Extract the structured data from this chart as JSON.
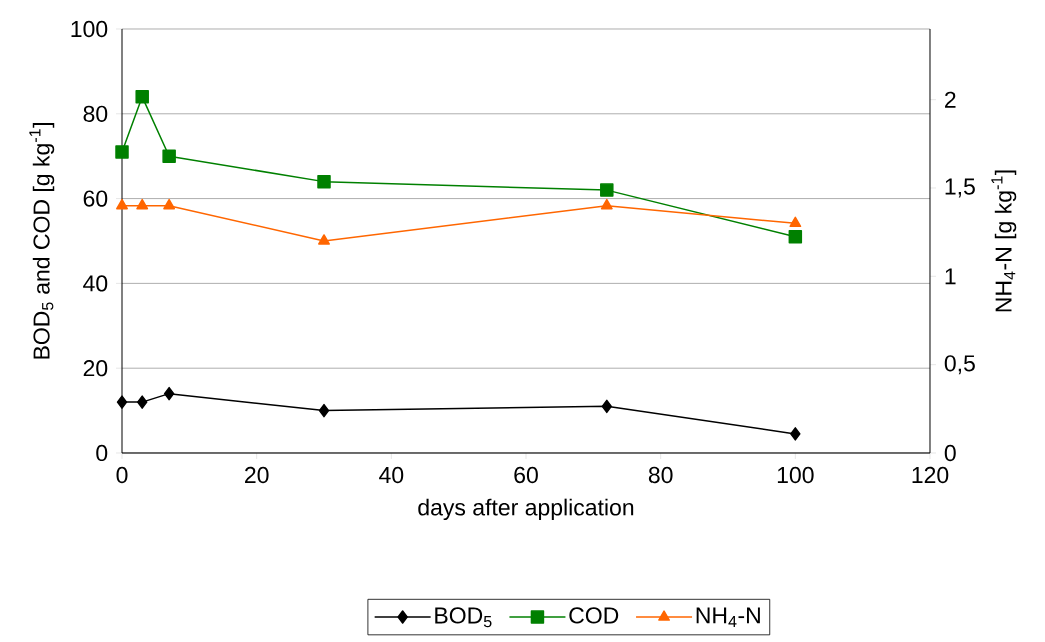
{
  "chart_data": {
    "type": "line",
    "xlabel": "days after application",
    "ylabel": "BOD$_{5}$ and COD [g kg$^{-1}$]",
    "y2label": "NH$_{4}$-N [g kg$^{-1}$]",
    "xlim": [
      0,
      120
    ],
    "xticks": [
      0,
      20,
      40,
      60,
      80,
      100,
      120
    ],
    "ylim": [
      0,
      100
    ],
    "yticks": [
      0,
      20,
      40,
      60,
      80,
      100
    ],
    "y2lim": [
      0,
      2.4
    ],
    "y2ticks": [
      0,
      {
        "value": 0.5,
        "label": "0,5"
      },
      1,
      {
        "value": 1.5,
        "label": "1,5"
      },
      2
    ],
    "grid": "y",
    "legend": "bottom",
    "line_style": "solid",
    "series": [
      {
        "name": "BOD$_{5}$",
        "color": "#000000",
        "marker": "diamond",
        "x": [
          0,
          3,
          7,
          30,
          72,
          100
        ],
        "values": [
          12,
          12,
          14,
          10,
          11,
          4.5
        ]
      },
      {
        "name": "COD",
        "color": "#008000",
        "marker": "square",
        "x": [
          0,
          3,
          7,
          30,
          72,
          100
        ],
        "values": [
          71,
          84,
          70,
          64,
          62,
          51
        ]
      },
      {
        "name": "NH$_{4}$-N",
        "color": "#ff6600",
        "marker": "triangle",
        "axis": "y2",
        "x": [
          0,
          3,
          7,
          30,
          72,
          100
        ],
        "values": [
          1.4,
          1.4,
          1.4,
          1.2,
          1.4,
          1.3
        ]
      }
    ]
  }
}
